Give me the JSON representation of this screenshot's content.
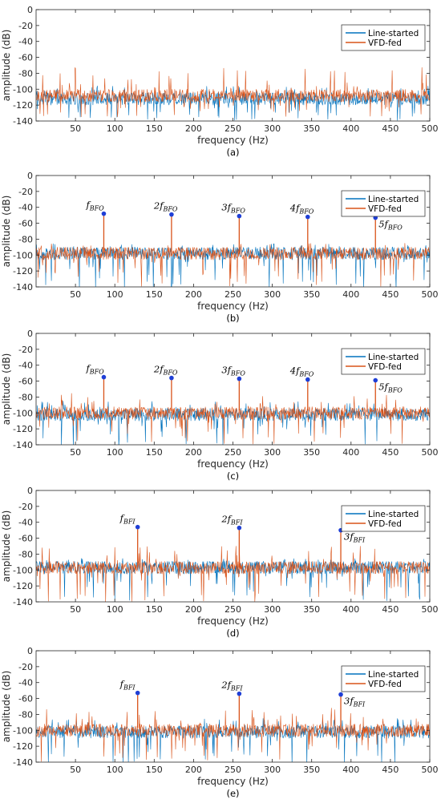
{
  "chart_data": [
    {
      "type": "line",
      "xlabel": "frequency (Hz)",
      "ylabel": "amplitude (dB)",
      "panel_label": "(a)",
      "xlim": [
        0,
        500
      ],
      "ylim": [
        -140,
        0
      ],
      "xticks": [
        50,
        100,
        150,
        200,
        250,
        300,
        350,
        400,
        450,
        500
      ],
      "yticks": [
        0,
        -20,
        -40,
        -60,
        -80,
        -100,
        -120,
        -140
      ],
      "legend_position": "top-right",
      "series": [
        {
          "name": "Line-started",
          "color": "#0072BD",
          "noise_floor_db": -112,
          "typical_range_db": [
            -130,
            -95
          ]
        },
        {
          "name": "VFD-fed",
          "color": "#D95319",
          "noise_floor_db": -108,
          "typical_range_db": [
            -125,
            -72
          ]
        }
      ],
      "annotations": []
    },
    {
      "type": "line",
      "xlabel": "frequency (Hz)",
      "ylabel": "amplitude (dB)",
      "panel_label": "(b)",
      "xlim": [
        0,
        500
      ],
      "ylim": [
        -140,
        0
      ],
      "xticks": [
        50,
        100,
        150,
        200,
        250,
        300,
        350,
        400,
        450,
        500
      ],
      "yticks": [
        0,
        -20,
        -40,
        -60,
        -80,
        -100,
        -120,
        -140
      ],
      "legend_position": "top-right",
      "series": [
        {
          "name": "Line-started",
          "color": "#0072BD",
          "noise_floor_db": -98,
          "typical_range_db": [
            -135,
            -85
          ]
        },
        {
          "name": "VFD-fed",
          "color": "#D95319",
          "noise_floor_db": -98,
          "typical_range_db": [
            -130,
            -85
          ]
        }
      ],
      "annotations": [
        {
          "base": "f",
          "coef": "",
          "sub": "BFO",
          "x": 86,
          "y": -48,
          "label_side": "left"
        },
        {
          "base": "f",
          "coef": "2",
          "sub": "BFO",
          "x": 172,
          "y": -49,
          "label_side": "left"
        },
        {
          "base": "f",
          "coef": "3",
          "sub": "BFO",
          "x": 258,
          "y": -51,
          "label_side": "left"
        },
        {
          "base": "f",
          "coef": "4",
          "sub": "BFO",
          "x": 345,
          "y": -52,
          "label_side": "left"
        },
        {
          "base": "f",
          "coef": "5",
          "sub": "BFO",
          "x": 431,
          "y": -53,
          "label_side": "right"
        }
      ]
    },
    {
      "type": "line",
      "xlabel": "frequency (Hz)",
      "ylabel": "amplitude (dB)",
      "panel_label": "(c)",
      "xlim": [
        0,
        500
      ],
      "ylim": [
        -140,
        0
      ],
      "xticks": [
        50,
        100,
        150,
        200,
        250,
        300,
        350,
        400,
        450,
        500
      ],
      "yticks": [
        0,
        -20,
        -40,
        -60,
        -80,
        -100,
        -120,
        -140
      ],
      "legend_position": "top-right",
      "series": [
        {
          "name": "Line-started",
          "color": "#0072BD",
          "noise_floor_db": -102,
          "typical_range_db": [
            -135,
            -85
          ]
        },
        {
          "name": "VFD-fed",
          "color": "#D95319",
          "noise_floor_db": -100,
          "typical_range_db": [
            -130,
            -75
          ]
        }
      ],
      "annotations": [
        {
          "base": "f",
          "coef": "",
          "sub": "BFO",
          "x": 86,
          "y": -55,
          "label_side": "left"
        },
        {
          "base": "f",
          "coef": "2",
          "sub": "BFO",
          "x": 172,
          "y": -56,
          "label_side": "left"
        },
        {
          "base": "f",
          "coef": "3",
          "sub": "BFO",
          "x": 258,
          "y": -57,
          "label_side": "left"
        },
        {
          "base": "f",
          "coef": "4",
          "sub": "BFO",
          "x": 345,
          "y": -58,
          "label_side": "left"
        },
        {
          "base": "f",
          "coef": "5",
          "sub": "BFO",
          "x": 431,
          "y": -59,
          "label_side": "right"
        }
      ]
    },
    {
      "type": "line",
      "xlabel": "frequency (Hz)",
      "ylabel": "amplitude (dB)",
      "panel_label": "(d)",
      "xlim": [
        0,
        500
      ],
      "ylim": [
        -140,
        0
      ],
      "xticks": [
        50,
        100,
        150,
        200,
        250,
        300,
        350,
        400,
        450,
        500
      ],
      "yticks": [
        0,
        -20,
        -40,
        -60,
        -80,
        -100,
        -120,
        -140
      ],
      "legend_position": "top-right",
      "series": [
        {
          "name": "Line-started",
          "color": "#0072BD",
          "noise_floor_db": -97,
          "typical_range_db": [
            -130,
            -85
          ]
        },
        {
          "name": "VFD-fed",
          "color": "#D95319",
          "noise_floor_db": -97,
          "typical_range_db": [
            -130,
            -70
          ]
        }
      ],
      "annotations": [
        {
          "base": "f",
          "coef": "",
          "sub": "BFI",
          "x": 129,
          "y": -46,
          "label_side": "left"
        },
        {
          "base": "f",
          "coef": "2",
          "sub": "BFI",
          "x": 258,
          "y": -47,
          "label_side": "left"
        },
        {
          "base": "f",
          "coef": "3",
          "sub": "BFI",
          "x": 387,
          "y": -50,
          "label_side": "right"
        }
      ]
    },
    {
      "type": "line",
      "xlabel": "frequency (Hz)",
      "ylabel": "amplitude (dB)",
      "panel_label": "(e)",
      "xlim": [
        0,
        500
      ],
      "ylim": [
        -140,
        0
      ],
      "xticks": [
        50,
        100,
        150,
        200,
        250,
        300,
        350,
        400,
        450,
        500
      ],
      "yticks": [
        0,
        -20,
        -40,
        -60,
        -80,
        -100,
        -120,
        -140
      ],
      "legend_position": "top-right",
      "series": [
        {
          "name": "Line-started",
          "color": "#0072BD",
          "noise_floor_db": -102,
          "typical_range_db": [
            -135,
            -85
          ]
        },
        {
          "name": "VFD-fed",
          "color": "#D95319",
          "noise_floor_db": -100,
          "typical_range_db": [
            -130,
            -72
          ]
        }
      ],
      "annotations": [
        {
          "base": "f",
          "coef": "",
          "sub": "BFI",
          "x": 129,
          "y": -53,
          "label_side": "left"
        },
        {
          "base": "f",
          "coef": "2",
          "sub": "BFI",
          "x": 258,
          "y": -54,
          "label_side": "left"
        },
        {
          "base": "f",
          "coef": "3",
          "sub": "BFI",
          "x": 387,
          "y": -55,
          "label_side": "right"
        }
      ]
    }
  ]
}
